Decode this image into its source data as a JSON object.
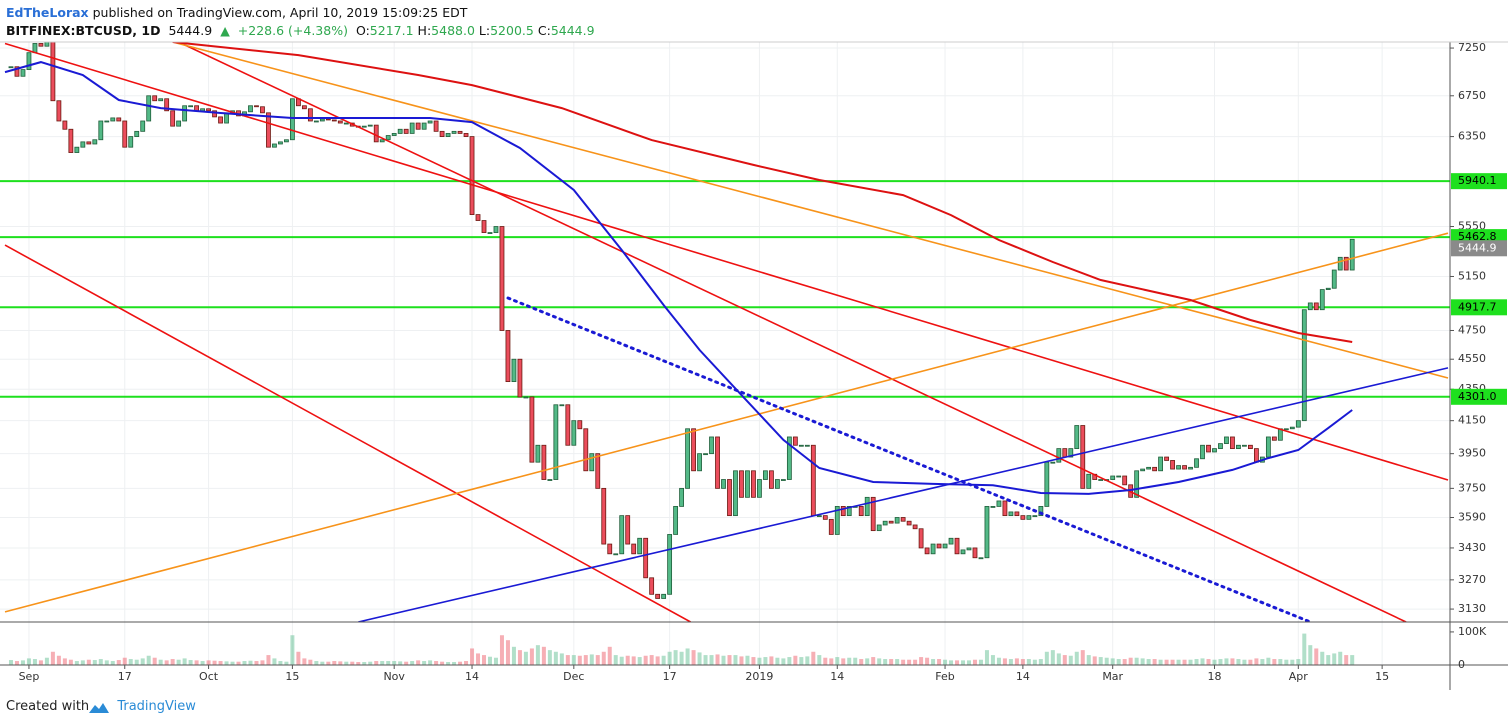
{
  "chart_data": {
    "type": "candlestick",
    "header": {
      "author": "EdTheLorax",
      "published": "published on TradingView.com, April 10, 2019 15:09:25 EDT",
      "symbol": "BITFINEX:BTCUSD, 1D",
      "last": 5444.9,
      "arrow": "▲",
      "change": "+228.6 (+4.38%)",
      "ohlc": [
        {
          "label": "O:",
          "value": "5217.1"
        },
        {
          "label": "H:",
          "value": "5488.0"
        },
        {
          "label": "L:",
          "value": "5200.5"
        },
        {
          "label": "C:",
          "value": "5444.9"
        }
      ]
    },
    "footer": {
      "text": "Created with",
      "brand": "TradingView"
    },
    "categories": [
      null,
      null,
      null,
      "Sep",
      null,
      null,
      null,
      null,
      null,
      null,
      null,
      null,
      null,
      null,
      null,
      null,
      null,
      null,
      null,
      "17",
      null,
      null,
      null,
      null,
      null,
      null,
      null,
      null,
      null,
      null,
      null,
      null,
      null,
      "Oct",
      null,
      null,
      null,
      null,
      null,
      null,
      null,
      null,
      null,
      null,
      null,
      null,
      null,
      "15",
      null,
      null,
      null,
      null,
      null,
      null,
      null,
      null,
      null,
      null,
      null,
      null,
      null,
      null,
      null,
      null,
      "Nov",
      null,
      null,
      null,
      null,
      null,
      null,
      null,
      null,
      null,
      null,
      null,
      null,
      "14",
      null,
      null,
      null,
      null,
      null,
      null,
      null,
      null,
      null,
      null,
      null,
      null,
      null,
      null,
      null,
      null,
      "Dec",
      null,
      null,
      null,
      null,
      null,
      null,
      null,
      null,
      null,
      null,
      null,
      null,
      null,
      null,
      null,
      "17",
      null,
      null,
      null,
      null,
      null,
      null,
      null,
      null,
      null,
      null,
      null,
      null,
      null,
      null,
      "2019",
      null,
      null,
      null,
      null,
      null,
      null,
      null,
      null,
      null,
      null,
      null,
      null,
      "14",
      null,
      null,
      null,
      null,
      null,
      null,
      null,
      null,
      null,
      null,
      null,
      null,
      null,
      null,
      null,
      null,
      null,
      "Feb",
      null,
      null,
      null,
      null,
      null,
      null,
      null,
      null,
      null,
      null,
      null,
      null,
      "14",
      null,
      null,
      null,
      null,
      null,
      null,
      null,
      null,
      null,
      null,
      null,
      null,
      null,
      null,
      "Mar",
      null,
      null,
      null,
      null,
      null,
      null,
      null,
      null,
      null,
      null,
      null,
      null,
      null,
      null,
      null,
      null,
      "18",
      null,
      null,
      null,
      null,
      null,
      null,
      null,
      null,
      null,
      null,
      null,
      null,
      null,
      "Apr",
      null,
      null,
      null,
      null,
      null,
      null,
      null,
      null,
      null,
      null,
      null,
      null,
      null,
      "15"
    ],
    "close": [
      7050,
      6950,
      7020,
      7200,
      7300,
      7270,
      7360,
      6700,
      6500,
      6420,
      6200,
      6250,
      6300,
      6280,
      6320,
      6500,
      6500,
      6530,
      6500,
      6250,
      6350,
      6400,
      6500,
      6750,
      6700,
      6720,
      6600,
      6450,
      6500,
      6650,
      6650,
      6600,
      6620,
      6600,
      6540,
      6480,
      6580,
      6600,
      6550,
      6590,
      6650,
      6640,
      6580,
      6250,
      6280,
      6300,
      6320,
      6720,
      6650,
      6620,
      6500,
      6500,
      6520,
      6510,
      6500,
      6480,
      6480,
      6450,
      6440,
      6450,
      6460,
      6300,
      6320,
      6360,
      6380,
      6420,
      6380,
      6480,
      6420,
      6480,
      6500,
      6400,
      6350,
      6380,
      6400,
      6380,
      6350,
      5650,
      5600,
      5500,
      5500,
      5550,
      4750,
      4400,
      4550,
      4300,
      4300,
      3900,
      4000,
      3800,
      3800,
      4250,
      4250,
      4000,
      4150,
      4100,
      3850,
      3950,
      3750,
      3450,
      3400,
      3400,
      3600,
      3450,
      3400,
      3480,
      3280,
      3200,
      3180,
      3200,
      3500,
      3650,
      3750,
      4100,
      3850,
      3950,
      3950,
      4050,
      3750,
      3800,
      3600,
      3850,
      3700,
      3850,
      3700,
      3800,
      3850,
      3750,
      3800,
      3800,
      4050,
      4000,
      4000,
      4000,
      3600,
      3600,
      3580,
      3500,
      3650,
      3600,
      3650,
      3650,
      3600,
      3700,
      3520,
      3550,
      3570,
      3560,
      3590,
      3570,
      3550,
      3530,
      3430,
      3400,
      3450,
      3430,
      3450,
      3480,
      3400,
      3420,
      3430,
      3380,
      3380,
      3650,
      3650,
      3680,
      3600,
      3620,
      3600,
      3580,
      3600,
      3600,
      3650,
      3900,
      3900,
      3980,
      3930,
      3980,
      4120,
      3750,
      3830,
      3800,
      3800,
      3800,
      3820,
      3820,
      3770,
      3700,
      3850,
      3860,
      3870,
      3850,
      3930,
      3910,
      3860,
      3880,
      3860,
      3870,
      3920,
      4000,
      3960,
      3980,
      4010,
      4050,
      3980,
      4000,
      4000,
      3980,
      3900,
      3930,
      4050,
      4030,
      4100,
      4100,
      4110,
      4150,
      4900,
      4950,
      4900,
      5050,
      5060,
      5200,
      5300,
      5200,
      5444.9,
      null,
      null,
      null,
      null,
      null
    ],
    "volume": [
      15,
      12,
      14,
      20,
      18,
      14,
      22,
      40,
      28,
      20,
      16,
      12,
      14,
      16,
      15,
      18,
      14,
      12,
      15,
      22,
      18,
      16,
      20,
      28,
      22,
      16,
      14,
      18,
      16,
      20,
      15,
      14,
      12,
      14,
      13,
      12,
      11,
      10,
      10,
      12,
      13,
      12,
      14,
      30,
      20,
      12,
      10,
      90,
      40,
      20,
      16,
      12,
      10,
      10,
      12,
      11,
      10,
      10,
      9,
      9,
      10,
      12,
      12,
      12,
      12,
      11,
      10,
      12,
      14,
      12,
      14,
      12,
      10,
      9,
      9,
      10,
      12,
      50,
      35,
      30,
      25,
      22,
      90,
      75,
      55,
      45,
      40,
      50,
      60,
      55,
      45,
      40,
      35,
      30,
      30,
      28,
      30,
      32,
      30,
      40,
      55,
      30,
      25,
      28,
      26,
      24,
      28,
      30,
      26,
      28,
      40,
      45,
      40,
      50,
      45,
      38,
      30,
      30,
      32,
      28,
      30,
      30,
      26,
      28,
      24,
      22,
      24,
      26,
      22,
      20,
      24,
      28,
      24,
      26,
      40,
      30,
      22,
      20,
      24,
      20,
      22,
      22,
      18,
      20,
      24,
      20,
      18,
      18,
      18,
      16,
      16,
      16,
      24,
      22,
      18,
      18,
      16,
      14,
      14,
      14,
      14,
      16,
      16,
      45,
      30,
      22,
      20,
      18,
      20,
      18,
      18,
      16,
      18,
      40,
      45,
      35,
      30,
      28,
      40,
      45,
      30,
      26,
      24,
      22,
      20,
      18,
      18,
      22,
      22,
      20,
      18,
      18,
      16,
      16,
      16,
      16,
      16,
      16,
      18,
      20,
      18,
      16,
      18,
      20,
      20,
      18,
      16,
      16,
      20,
      18,
      22,
      18,
      18,
      16,
      16,
      18,
      95,
      60,
      50,
      40,
      30,
      35,
      40,
      30,
      30,
      null,
      null,
      null,
      null,
      null
    ],
    "up_color": "#53b987",
    "down_color": "#eb4d5c",
    "ylim": [
      3070,
      7316
    ],
    "log_scale": true,
    "yticks": [
      7250,
      6750,
      6350,
      5550,
      5150,
      4750,
      4550,
      4350,
      4150,
      3950,
      3750,
      3590,
      3430,
      3270,
      3130
    ],
    "xlim": [
      -1,
      240
    ],
    "grid": true,
    "vlim": [
      0,
      130
    ],
    "vticks": [
      {
        "value": 100,
        "label": "100K"
      },
      0
    ],
    "levels": [
      5940.1,
      5462.8,
      4917.7,
      {
        "value": 4301,
        "label": "4301.0"
      }
    ],
    "level_color": "#1ee01e",
    "last_price_color": "#8a8a8a",
    "lines": [
      {
        "color": "#ee1111",
        "x": [
          -1,
          240
        ],
        "values": [
          7300,
          3797
        ]
      },
      {
        "color": "#ee1111",
        "x": [
          28,
          233
        ],
        "values": [
          7316,
          3070
        ]
      },
      {
        "color": "#ee1111",
        "x": [
          -1,
          113.5
        ],
        "values": [
          5398,
          3070
        ]
      },
      {
        "color": "#f7931a",
        "x": [
          27,
          240
        ],
        "values": [
          7316,
          4424
        ]
      },
      {
        "color": "#f7931a",
        "x": [
          -1,
          240
        ],
        "values": [
          3117,
          5495
        ]
      },
      {
        "color": "#1a1ad4",
        "x": [
          58,
          240
        ],
        "values": [
          3070,
          4491
        ]
      },
      {
        "color": "#1a1ad4",
        "dotted": true,
        "x": [
          83,
          217
        ],
        "values": [
          4987,
          3070
        ]
      },
      {
        "color": "#dd1111",
        "width": 2,
        "x": [
          27,
          48,
          68,
          77,
          92,
          107,
          124,
          135,
          149,
          157,
          165,
          174,
          182,
          197,
          207,
          215,
          224
        ],
        "values": [
          7316,
          7174,
          6963,
          6859,
          6627,
          6317,
          6086,
          5950,
          5817,
          5646,
          5439,
          5263,
          5123,
          4972,
          4825,
          4732,
          4669
        ]
      },
      {
        "color": "#1a1ad4",
        "width": 2,
        "x": [
          -1,
          5,
          12,
          18,
          25,
          35,
          47,
          58,
          70,
          77,
          85,
          94,
          102,
          109,
          115,
          122,
          129,
          135,
          144,
          154,
          164,
          172,
          180,
          187,
          195,
          204,
          210,
          215,
          220,
          224
        ],
        "values": [
          6994,
          7099,
          6963,
          6707,
          6627,
          6578,
          6529,
          6529,
          6529,
          6489,
          6242,
          5862,
          5358,
          4935,
          4613,
          4312,
          4032,
          3866,
          3786,
          3775,
          3767,
          3724,
          3719,
          3741,
          3786,
          3855,
          3924,
          3972,
          4104,
          4217
        ]
      }
    ]
  }
}
